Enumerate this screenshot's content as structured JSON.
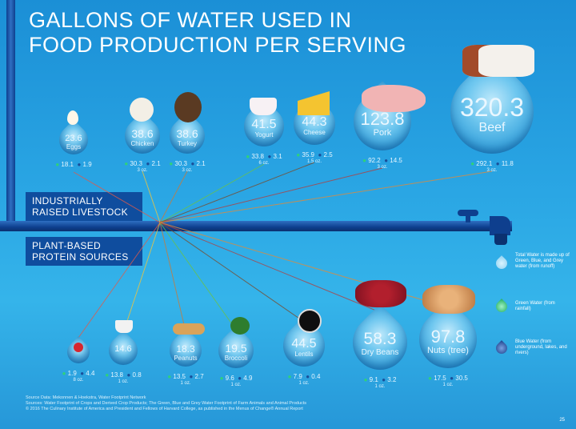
{
  "title_line1": "GALLONS OF WATER USED IN",
  "title_line2": "FOOD PRODUCTION PER SERVING",
  "section_livestock": "INDUSTRIALLY RAISED LIVESTOCK",
  "section_plant": "PLANT-BASED PROTEIN SOURCES",
  "chart_data": {
    "type": "bar",
    "title": "GALLONS OF WATER USED IN FOOD PRODUCTION PER SERVING",
    "groups": [
      {
        "name": "INDUSTRIALLY RAISED LIVESTOCK",
        "items": [
          {
            "name": "Eggs",
            "total": 23.6,
            "green": 18.1,
            "blue": 1.9
          },
          {
            "name": "Chicken",
            "total": 38.6,
            "green": 30.3,
            "blue": 2.1,
            "serving": "3 oz."
          },
          {
            "name": "Turkey",
            "total": 38.6,
            "green": 30.3,
            "blue": 2.1,
            "serving": "3 oz."
          },
          {
            "name": "Yogurt",
            "total": 41.5,
            "green": 33.8,
            "blue": 3.1,
            "serving": "6 oz."
          },
          {
            "name": "Cheese",
            "total": 44.3,
            "green": 35.9,
            "blue": 2.5,
            "serving": "1.5 oz."
          },
          {
            "name": "Pork",
            "total": 123.8,
            "green": 92.2,
            "blue": 14.5,
            "serving": "3 oz."
          },
          {
            "name": "Beef",
            "total": 320.3,
            "green": 292.1,
            "blue": 11.8,
            "serving": "3 oz."
          }
        ]
      },
      {
        "name": "PLANT-BASED PROTEIN SOURCES",
        "items": [
          {
            "name": "",
            "total": null,
            "green": 1.9,
            "blue": 4.4,
            "serving": "8 oz."
          },
          {
            "name": "",
            "total": 14.6,
            "green": 13.8,
            "blue": 0.8,
            "serving": "1 oz."
          },
          {
            "name": "Peanuts",
            "total": 18.3,
            "green": 13.5,
            "blue": 2.7,
            "serving": "1 oz."
          },
          {
            "name": "Broccoli",
            "total": 19.5,
            "green": 9.6,
            "blue": 4.9,
            "serving": "1 oz."
          },
          {
            "name": "Lentils",
            "total": 44.5,
            "green": 7.9,
            "blue": 0.4,
            "serving": "1 oz."
          },
          {
            "name": "Dry Beans",
            "total": 58.3,
            "green": 9.1,
            "blue": 3.2,
            "serving": "1 oz."
          },
          {
            "name": "Nuts (tree)",
            "total": 97.8,
            "green": 17.5,
            "blue": 30.5,
            "serving": "1 oz."
          }
        ]
      }
    ]
  },
  "legend": {
    "total": "Total Water is made up of Green, Blue, and Grey water (from runoff)",
    "green": "Green Water (from rainfall)",
    "blue": "Blue Water (from underground, lakes, and rivers)"
  },
  "footer": {
    "line1": "Source Data: Mekonnen & Hoekstra, Water Footprint Network",
    "line2": "Sources: Water Footprint of Crops and Derived Crop Products; The Green, Blue and Grey Water Footprint of Farm Animals and Animal Products",
    "line3": "© 2016 The Culinary Institute of America and President and Fellows of Harvard College, as published in the Menus of Change® Annual Report"
  },
  "page_number": "25",
  "colors": {
    "green": "#2fd17a",
    "blue": "#1a4f9a",
    "pipe": "#0f4d9e"
  }
}
